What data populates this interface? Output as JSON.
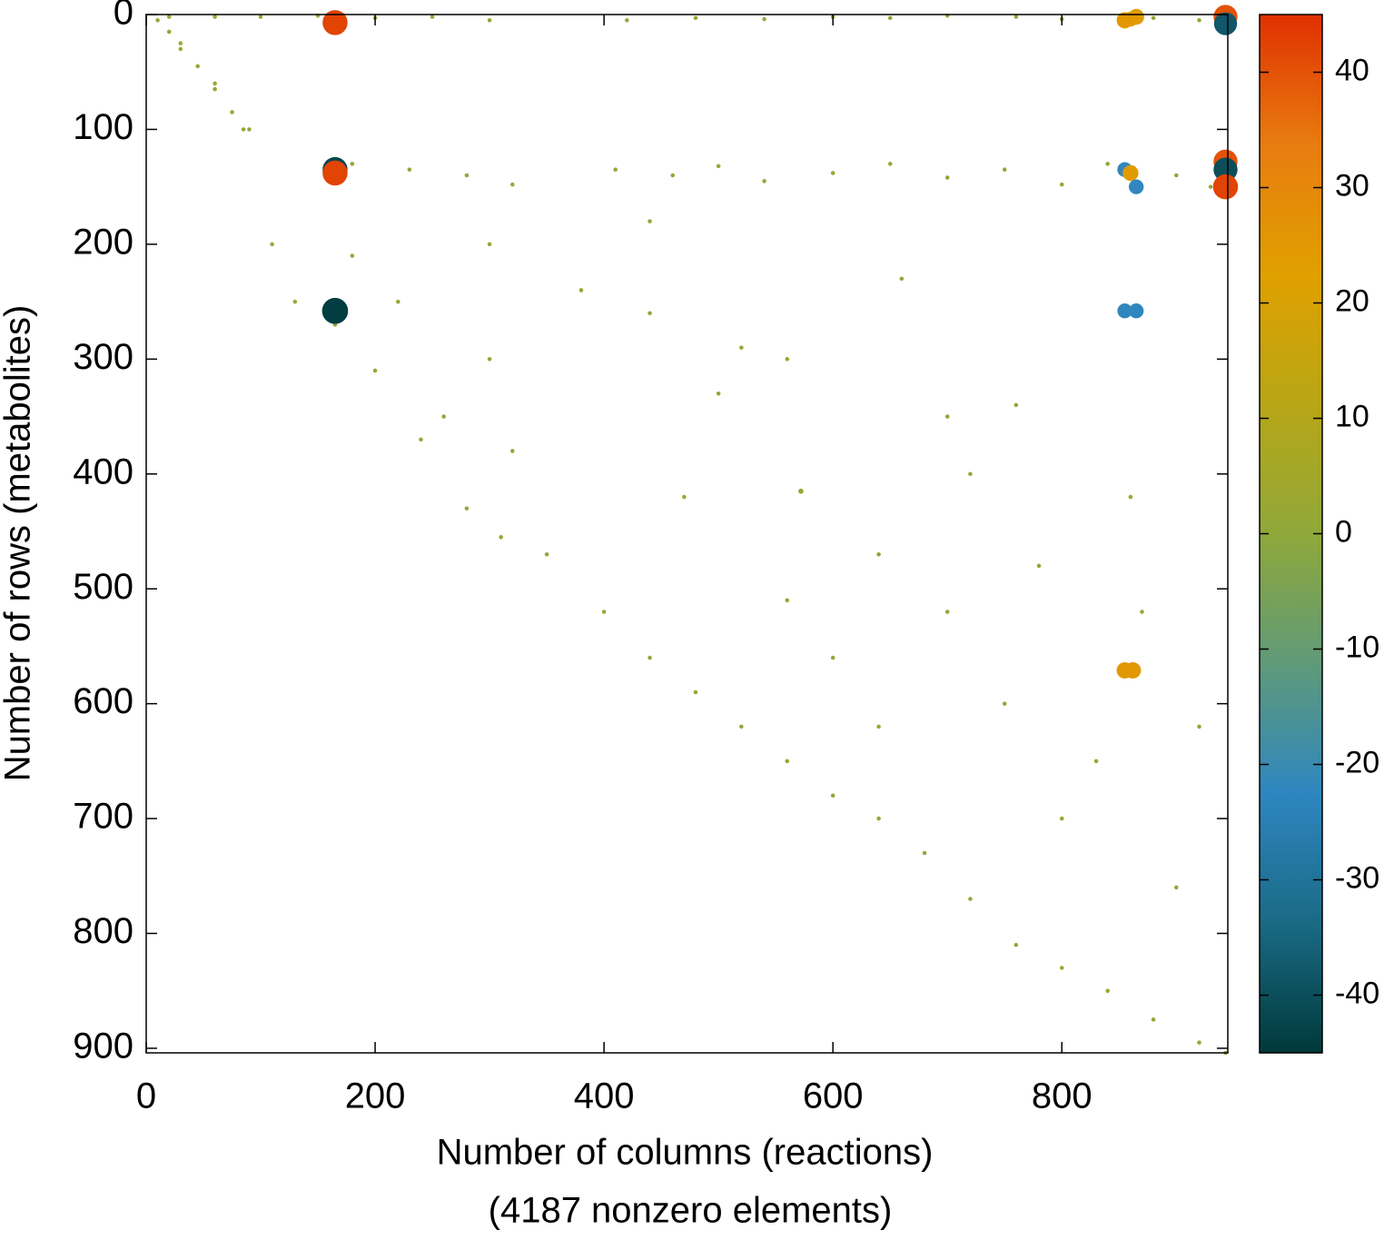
{
  "chart_data": {
    "type": "scatter",
    "ylabel": "Number of rows (metabolites)",
    "xlabel": [
      "Number of columns (reactions)",
      "(4187 nonzero elements)"
    ],
    "xlim": [
      0,
      945
    ],
    "ylim": [
      0,
      904
    ],
    "y_inverted": true,
    "xticks": [
      0,
      200,
      400,
      600,
      800
    ],
    "yticks": [
      0,
      100,
      200,
      300,
      400,
      500,
      600,
      700,
      800,
      900
    ],
    "clim": [
      -45,
      45
    ],
    "cticks": [
      -40,
      -30,
      -20,
      -10,
      0,
      10,
      20,
      30,
      40
    ],
    "colormap": [
      "#00393a",
      "#1a6a85",
      "#2e86c0",
      "#5f9a78",
      "#8fa83a",
      "#b8a616",
      "#e0a000",
      "#e87c10",
      "#e03000"
    ],
    "x": [
      30,
      60,
      85,
      110,
      130,
      165,
      200,
      240,
      280,
      310,
      350,
      400,
      440,
      480,
      520,
      560,
      600,
      640,
      680,
      720,
      760,
      800,
      840,
      880,
      920,
      943,
      10,
      20,
      30,
      45,
      60,
      75,
      90,
      20,
      60,
      100,
      150,
      200,
      250,
      300,
      420,
      480,
      540,
      600,
      650,
      700,
      760,
      800,
      880,
      920,
      180,
      230,
      280,
      320,
      410,
      460,
      500,
      540,
      600,
      650,
      700,
      750,
      800,
      840,
      900,
      930,
      180,
      220,
      260,
      300,
      320,
      380,
      440,
      470,
      500,
      520,
      560,
      600,
      640,
      660,
      700,
      720,
      750,
      780,
      800,
      830,
      870,
      900,
      920,
      300,
      440,
      560,
      640,
      700,
      760,
      860,
      572,
      165,
      943,
      943,
      860,
      865,
      855,
      165,
      165,
      943,
      943,
      943,
      855,
      860,
      865,
      165,
      855,
      865,
      862,
      855
    ],
    "y": [
      30,
      60,
      100,
      200,
      250,
      270,
      310,
      370,
      430,
      455,
      470,
      520,
      560,
      590,
      620,
      650,
      680,
      700,
      730,
      770,
      810,
      830,
      850,
      875,
      895,
      904,
      5,
      15,
      25,
      45,
      65,
      85,
      100,
      2,
      2,
      2,
      1,
      3,
      2,
      5,
      5,
      3,
      4,
      2,
      3,
      1,
      2,
      4,
      3,
      5,
      130,
      135,
      140,
      148,
      135,
      140,
      132,
      145,
      138,
      130,
      142,
      135,
      148,
      130,
      140,
      150,
      210,
      250,
      350,
      300,
      380,
      240,
      260,
      420,
      330,
      290,
      510,
      560,
      470,
      230,
      350,
      400,
      600,
      480,
      700,
      650,
      520,
      760,
      620,
      200,
      180,
      300,
      620,
      520,
      340,
      420,
      415,
      7,
      2,
      8,
      4,
      2,
      5,
      135,
      138,
      128,
      135,
      150,
      135,
      138,
      150,
      258,
      258,
      258,
      571,
      571
    ],
    "values": [
      1,
      1,
      1,
      1,
      1,
      1,
      1,
      1,
      1,
      1,
      1,
      1,
      1,
      1,
      1,
      1,
      1,
      1,
      1,
      1,
      1,
      1,
      1,
      1,
      1,
      1,
      1,
      1,
      1,
      1,
      1,
      1,
      1,
      1,
      1,
      1,
      1,
      1,
      1,
      1,
      1,
      1,
      1,
      1,
      1,
      1,
      1,
      1,
      1,
      1,
      1,
      1,
      1,
      1,
      1,
      1,
      1,
      1,
      1,
      1,
      1,
      1,
      1,
      1,
      1,
      1,
      1,
      1,
      1,
      1,
      1,
      1,
      1,
      1,
      1,
      1,
      1,
      1,
      1,
      1,
      1,
      1,
      1,
      1,
      1,
      1,
      1,
      1,
      1,
      1,
      1,
      1,
      1,
      1,
      1,
      1,
      3,
      42,
      40,
      -38,
      22,
      24,
      25,
      -42,
      42,
      40,
      -40,
      42,
      -22,
      24,
      -22,
      -44,
      -22,
      -22,
      25,
      25
    ]
  }
}
